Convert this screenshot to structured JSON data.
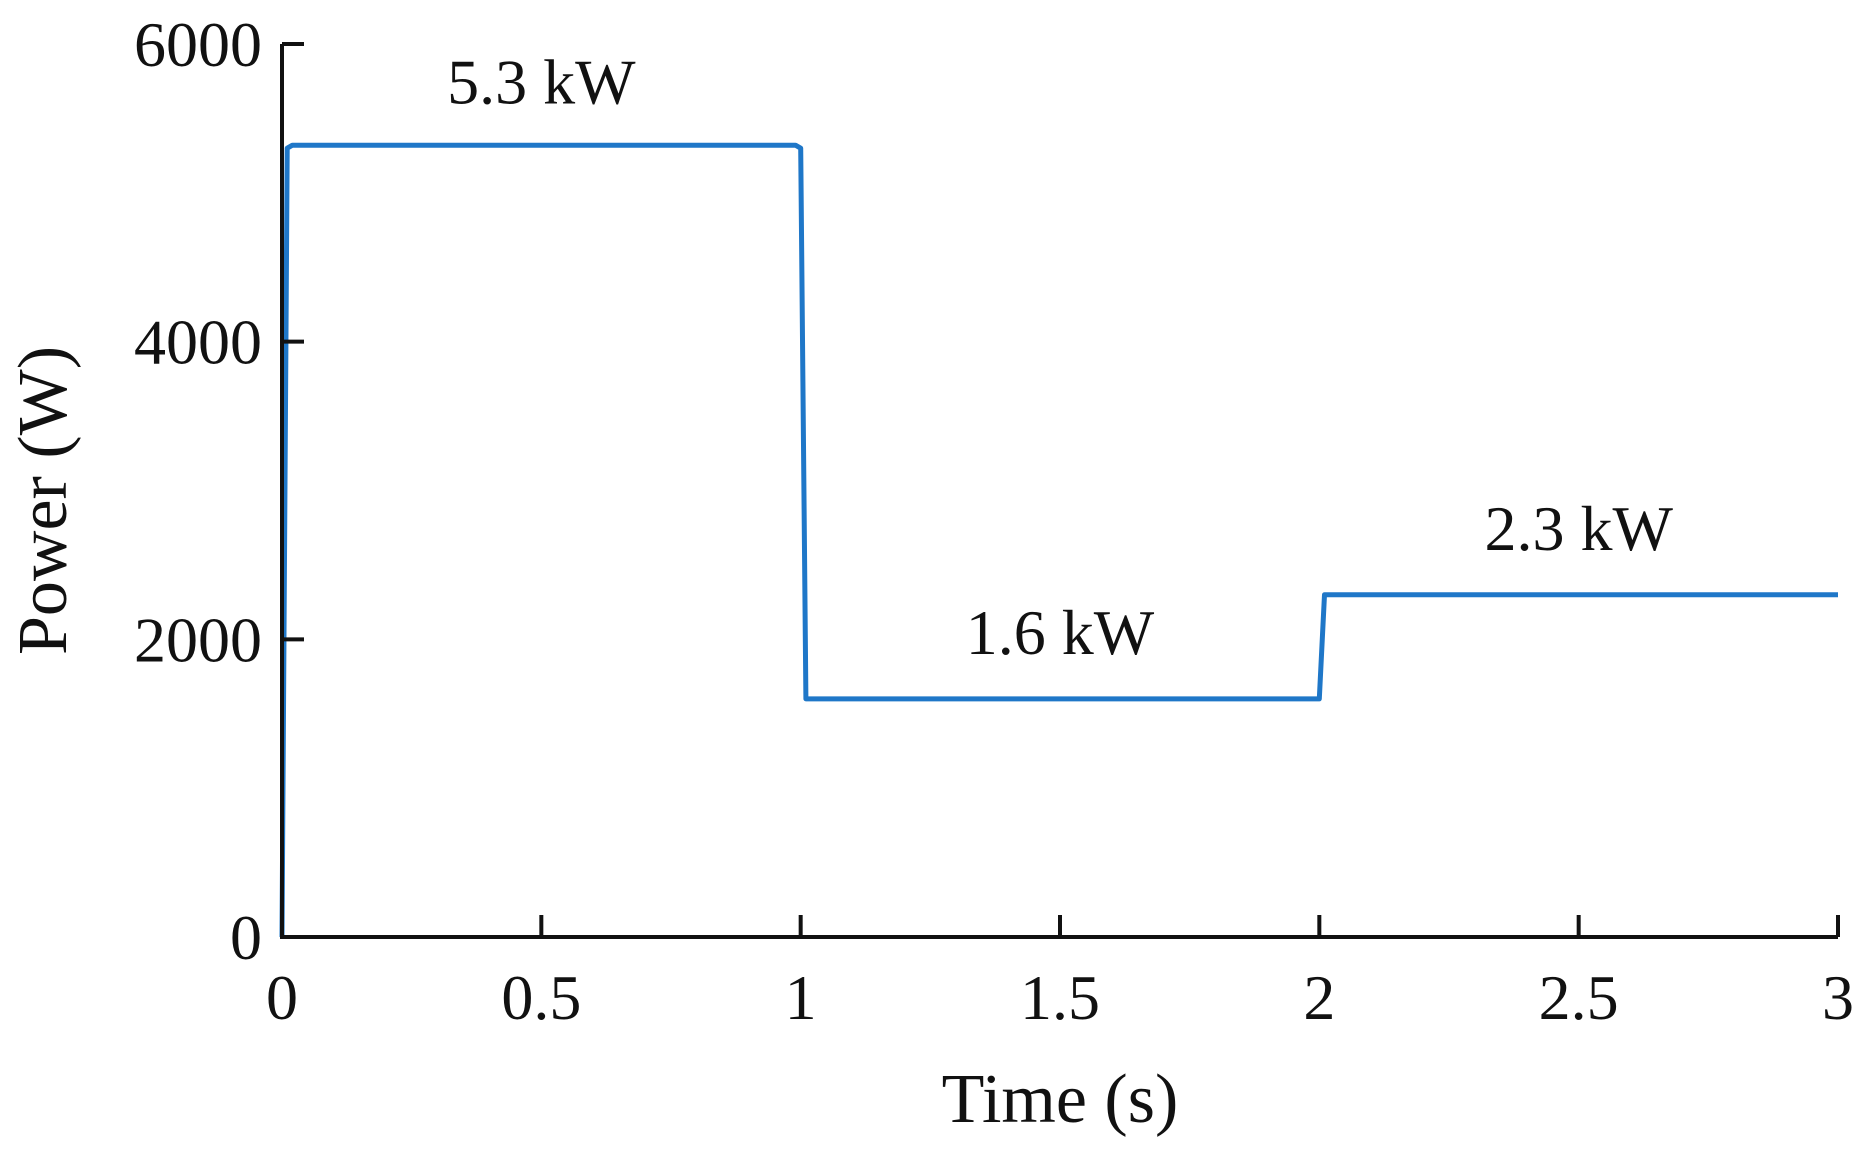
{
  "chart_data": {
    "type": "line",
    "title": "",
    "xlabel": "Time (s)",
    "ylabel": "Power (W)",
    "xlim": [
      0,
      3
    ],
    "ylim": [
      0,
      6000
    ],
    "xticks": [
      0,
      0.5,
      1,
      1.5,
      2,
      2.5,
      3
    ],
    "xtick_labels": [
      "0",
      "0.5",
      "1",
      "1.5",
      "2",
      "2.5",
      "3"
    ],
    "yticks": [
      0,
      2000,
      4000,
      6000
    ],
    "ytick_labels": [
      "0",
      "2000",
      "4000",
      "6000"
    ],
    "grid": false,
    "legend": "none",
    "series": [
      {
        "color": "#1f77c8",
        "x": [
          0,
          0.01,
          0.02,
          0.99,
          1.0,
          1.01,
          1.99,
          2.0,
          2.01,
          3.0
        ],
        "y": [
          0,
          5300,
          5320,
          5320,
          5300,
          1600,
          1600,
          1600,
          2300,
          2300
        ]
      }
    ],
    "annotations": [
      {
        "text": "5.3 kW",
        "x": 0.5,
        "y": 5600
      },
      {
        "text": "1.6 kW",
        "x": 1.5,
        "y": 1900
      },
      {
        "text": "2.3 kW",
        "x": 2.5,
        "y": 2600
      }
    ]
  }
}
